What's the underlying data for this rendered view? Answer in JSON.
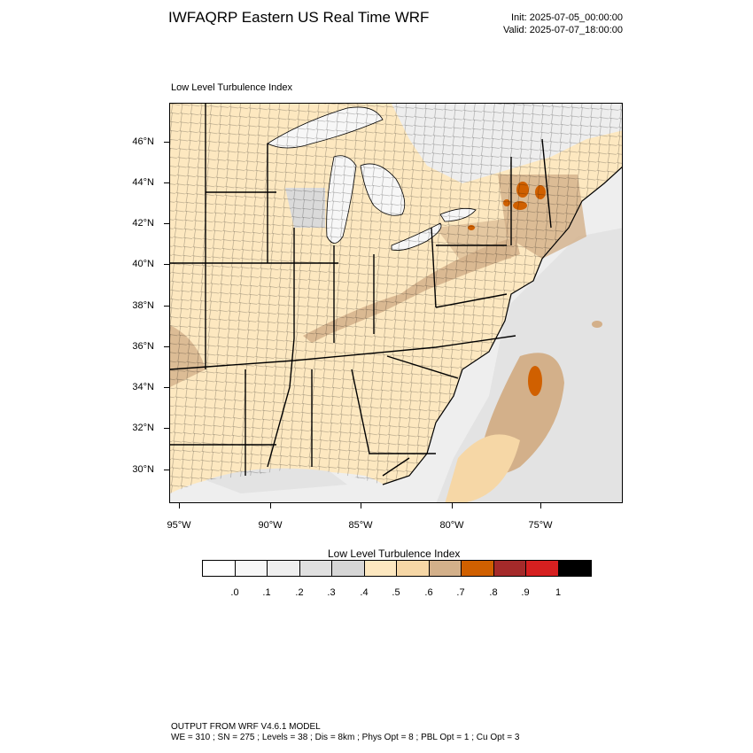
{
  "header": {
    "title": "IWFAQRP Eastern US Real Time WRF",
    "init": "Init: 2025-07-05_00:00:00",
    "valid": "Valid: 2025-07-07_18:00:00"
  },
  "map": {
    "title": "Low Level Turbulence Index",
    "lat_labels": [
      "46°N",
      "44°N",
      "42°N",
      "40°N",
      "38°N",
      "36°N",
      "34°N",
      "32°N",
      "30°N"
    ],
    "lon_labels": [
      "95°W",
      "90°W",
      "85°W",
      "80°W",
      "75°W"
    ],
    "colors": {
      "water": "#f7f7f7",
      "land_high": "#fde8c0",
      "land_mid": "#f6d7a6",
      "land_tan": "#d3b08a",
      "lake_grey": "#dadada",
      "ocean_grey": "#e3e3e3",
      "orange": "#d06000",
      "border": "#000000"
    }
  },
  "colorbar": {
    "title": "Low Level Turbulence Index",
    "labels": [
      ".0",
      ".1",
      ".2",
      ".3",
      ".4",
      ".5",
      ".6",
      ".7",
      ".8",
      ".9",
      "1"
    ],
    "colors": [
      "#ffffff",
      "#f7f7f7",
      "#efefef",
      "#e0e0e0",
      "#d6d6d6",
      "#fde8c0",
      "#f6d7a6",
      "#d3b08a",
      "#d06000",
      "#a52a2a",
      "#d62020",
      "#000000"
    ]
  },
  "footer": {
    "line1": "OUTPUT FROM WRF V4.6.1 MODEL",
    "line2": "WE = 310 ; SN = 275 ; Levels = 38 ; Dis = 8km ; Phys Opt = 8 ; PBL Opt = 1 ; Cu Opt = 3"
  }
}
